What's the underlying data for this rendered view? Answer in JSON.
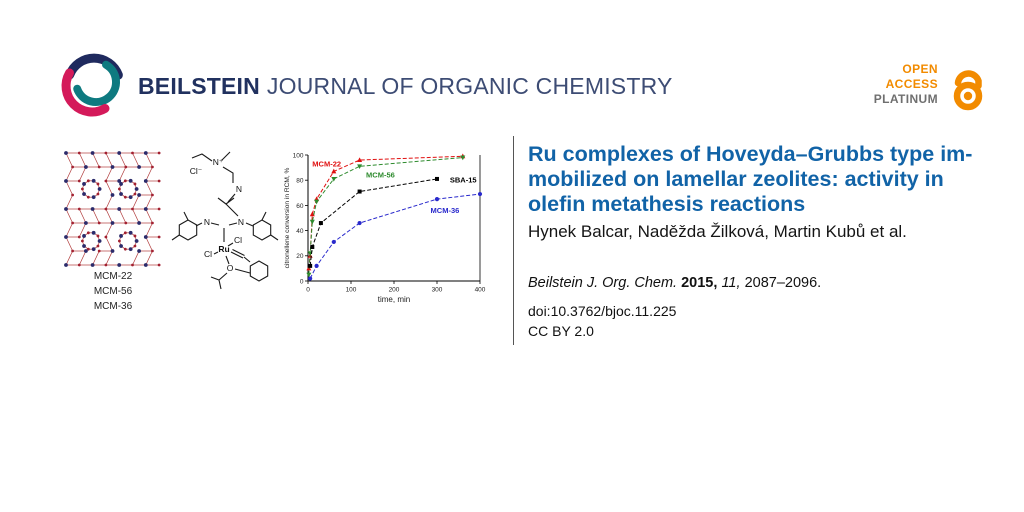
{
  "header": {
    "brand_bold": "BEILSTEIN",
    "brand_rest": "JOURNAL OF ORGANIC CHEMISTRY",
    "brand_color_bold": "#21315f",
    "brand_color_rest": "#3d4c74",
    "logo_colors": {
      "navy": "#1f2a5e",
      "teal": "#0e7a80",
      "magenta": "#d41a5a"
    },
    "open_access": {
      "line1": "OPEN",
      "line2": "ACCESS",
      "line3": "PLATINUM",
      "orange": "#f28b00",
      "gray": "#6f6f6f"
    }
  },
  "abstract": {
    "zeolite_labels": [
      "MCM-22",
      "MCM-56",
      "MCM-36"
    ],
    "atoms": {
      "cl_counter": "Cl⁻",
      "n_plus": "N⁺",
      "n_chain": "N",
      "n_left": "N",
      "n_right": "N",
      "cl_axial": "Cl",
      "cl_equatorial": "Cl",
      "ru": "Ru",
      "o": "O"
    }
  },
  "article": {
    "title_lines": [
      "Ru complexes of Hoveyda–Grubbs type im-",
      "mobilized on lamellar zeolites: activity in",
      "olefin metathesis reactions"
    ],
    "title_color": "#1163a7",
    "authors": "Hynek Balcar, Naděžda Žilková, Martin Kubů et al.",
    "citation": {
      "journal": "Beilstein J. Org. Chem.",
      "year": "2015,",
      "volume": "11,",
      "pages": "2087–2096."
    },
    "doi": "doi:10.3762/bjoc.11.225",
    "license": "CC BY 2.0"
  },
  "chart_data": {
    "type": "line",
    "title": "",
    "xlabel": "time, min",
    "ylabel": "citronellene conversion in RCM, %",
    "xlim": [
      0,
      400
    ],
    "ylim": [
      0,
      100
    ],
    "xticks": [
      0,
      100,
      200,
      300,
      400
    ],
    "yticks": [
      0,
      20,
      40,
      60,
      80,
      100
    ],
    "grid": false,
    "legend_position": "in-plot labels",
    "series": [
      {
        "name": "MCM-22",
        "color": "#e01010",
        "marker": "triangle-up",
        "x": [
          2,
          5,
          10,
          20,
          60,
          120,
          360
        ],
        "y": [
          10,
          20,
          53,
          65,
          87,
          96,
          99
        ]
      },
      {
        "name": "MCM-56",
        "color": "#2e8b2e",
        "marker": "triangle-down",
        "x": [
          2,
          5,
          10,
          20,
          60,
          120,
          360
        ],
        "y": [
          5,
          22,
          47,
          63,
          81,
          91,
          98
        ]
      },
      {
        "name": "SBA-15",
        "color": "#000000",
        "marker": "square",
        "x": [
          5,
          10,
          30,
          120,
          300
        ],
        "y": [
          12,
          27,
          46,
          71,
          81
        ]
      },
      {
        "name": "MCM-36",
        "color": "#2929cc",
        "marker": "circle",
        "x": [
          5,
          20,
          60,
          120,
          300,
          400
        ],
        "y": [
          2,
          12,
          31,
          46,
          65,
          69
        ]
      }
    ],
    "labels": [
      {
        "text": "MCM-22",
        "color": "#e01010",
        "x": 10,
        "y": 91
      },
      {
        "text": "MCM-56",
        "color": "#2e8b2e",
        "x": 135,
        "y": 82
      },
      {
        "text": "SBA-15",
        "color": "#000000",
        "x": 330,
        "y": 78
      },
      {
        "text": "MCM-36",
        "color": "#2929cc",
        "x": 285,
        "y": 54
      }
    ]
  }
}
